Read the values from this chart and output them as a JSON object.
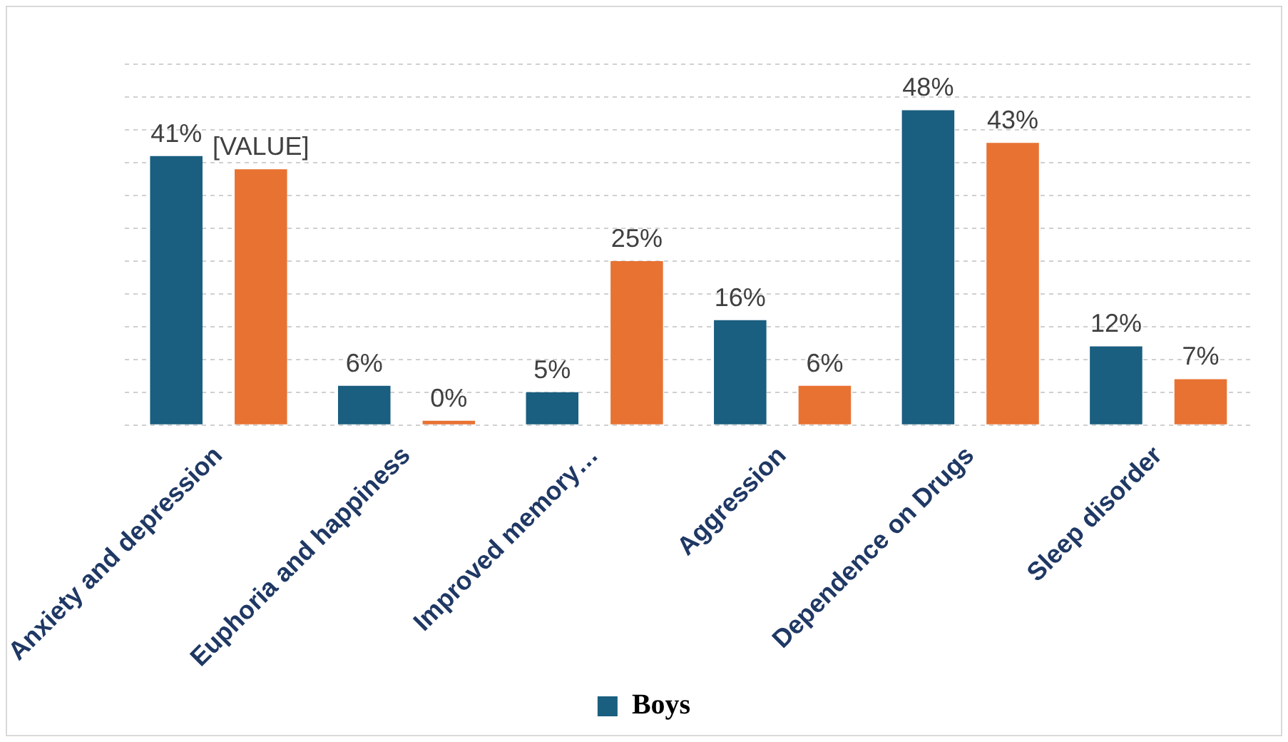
{
  "chart_data": {
    "type": "bar",
    "categories": [
      "Anxiety and depression",
      "Euphoria and happiness",
      "Improved memory…",
      "Aggression",
      "Dependence on Drugs",
      "Sleep disorder"
    ],
    "series": [
      {
        "name": "Boys",
        "color": "#1a5e80",
        "values": [
          41,
          6,
          5,
          16,
          48,
          12
        ],
        "value_labels": [
          "41%",
          "6%",
          "5%",
          "16%",
          "48%",
          "12%"
        ]
      },
      {
        "color": "#e87232",
        "values": [
          39,
          0,
          25,
          6,
          43,
          7
        ],
        "value_labels": [
          "[VALUE]",
          "0%",
          "25%",
          "6%",
          "43%",
          "7%"
        ]
      }
    ],
    "ylim": [
      0,
      55
    ],
    "yticks": [
      {
        "value": 0,
        "label": null
      },
      {
        "value": 5,
        "label": null
      },
      {
        "value": 10,
        "label": null
      },
      {
        "value": 15,
        "label": null
      },
      {
        "value": 20,
        "label": null
      },
      {
        "value": 25,
        "label": null
      },
      {
        "value": 30,
        "label": null
      },
      {
        "value": 35,
        "label": null
      },
      {
        "value": 40,
        "label": null
      },
      {
        "value": 45,
        "label": null
      },
      {
        "value": 50,
        "label": null
      },
      {
        "value": 55,
        "label": null
      }
    ],
    "grid": "y",
    "legend": "bottom",
    "tick_labels": "x"
  }
}
